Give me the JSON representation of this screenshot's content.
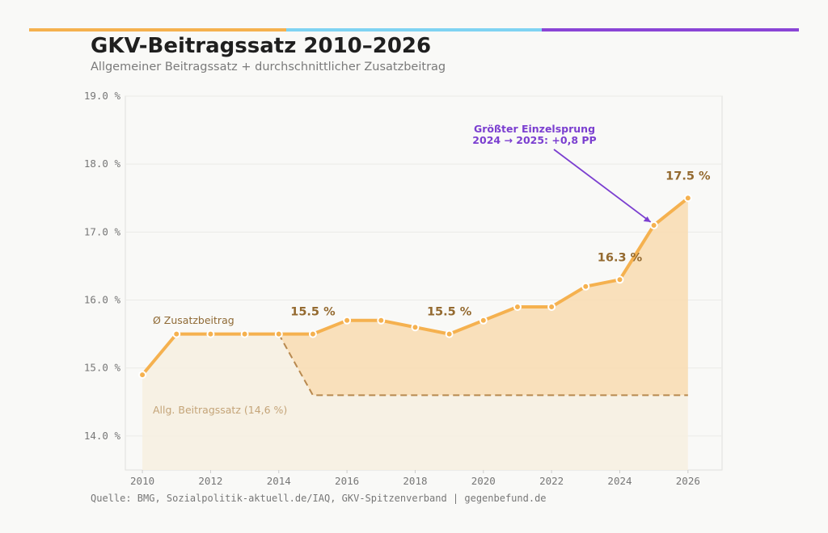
{
  "header": {
    "title": "GKV-Beitragssatz 2010–2026",
    "subtitle": "Allgemeiner Beitragssatz + durchschnittlicher Zusatzbeitrag",
    "accent_bar_colors": [
      "#f5b14f",
      "#7fd3f2",
      "#8a45d6"
    ]
  },
  "source": "Quelle: BMG, Sozialpolitik-aktuell.de/IAQ, GKV-Spitzenverband | gegenbefund.de",
  "chart_data": {
    "type": "area",
    "x": [
      2010,
      2011,
      2012,
      2013,
      2014,
      2015,
      2016,
      2017,
      2018,
      2019,
      2020,
      2021,
      2022,
      2023,
      2024,
      2025,
      2026
    ],
    "series": [
      {
        "name": "Ø Zusatzbeitrag",
        "values": [
          14.9,
          15.5,
          15.5,
          15.5,
          15.5,
          15.5,
          15.7,
          15.7,
          15.6,
          15.5,
          15.7,
          15.9,
          15.9,
          16.2,
          16.3,
          17.1,
          17.5
        ],
        "color": "#f5b14f"
      },
      {
        "name": "Allg. Beitragssatz (14,6 %)",
        "values": [
          14.9,
          15.5,
          15.5,
          15.5,
          15.5,
          14.6,
          14.6,
          14.6,
          14.6,
          14.6,
          14.6,
          14.6,
          14.6,
          14.6,
          14.6,
          14.6,
          14.6
        ],
        "color": "#b8894f",
        "style": "dashed"
      }
    ],
    "xlim": [
      2009.5,
      2027
    ],
    "ylim": [
      13.5,
      19.0
    ],
    "xticks": [
      "2010",
      "2012",
      "2014",
      "2016",
      "2018",
      "2020",
      "2022",
      "2024",
      "2026"
    ],
    "yticks": [
      "14.0 %",
      "15.0 %",
      "16.0 %",
      "17.0 %",
      "18.0 %",
      "19.0 %"
    ],
    "grid": true,
    "data_labels": [
      {
        "x": 2015,
        "y": 15.5,
        "text": "15.5 %"
      },
      {
        "x": 2019,
        "y": 15.5,
        "text": "15.5 %"
      },
      {
        "x": 2024,
        "y": 16.3,
        "text": "16.3 %"
      },
      {
        "x": 2026,
        "y": 17.5,
        "text": "17.5 %"
      }
    ],
    "annotation": {
      "line1": "Größter Einzelsprung",
      "line2": "2024 → 2025: +0,8 PP",
      "target_x": 2025,
      "target_y": 17.1,
      "color": "#7b3fd0"
    }
  }
}
